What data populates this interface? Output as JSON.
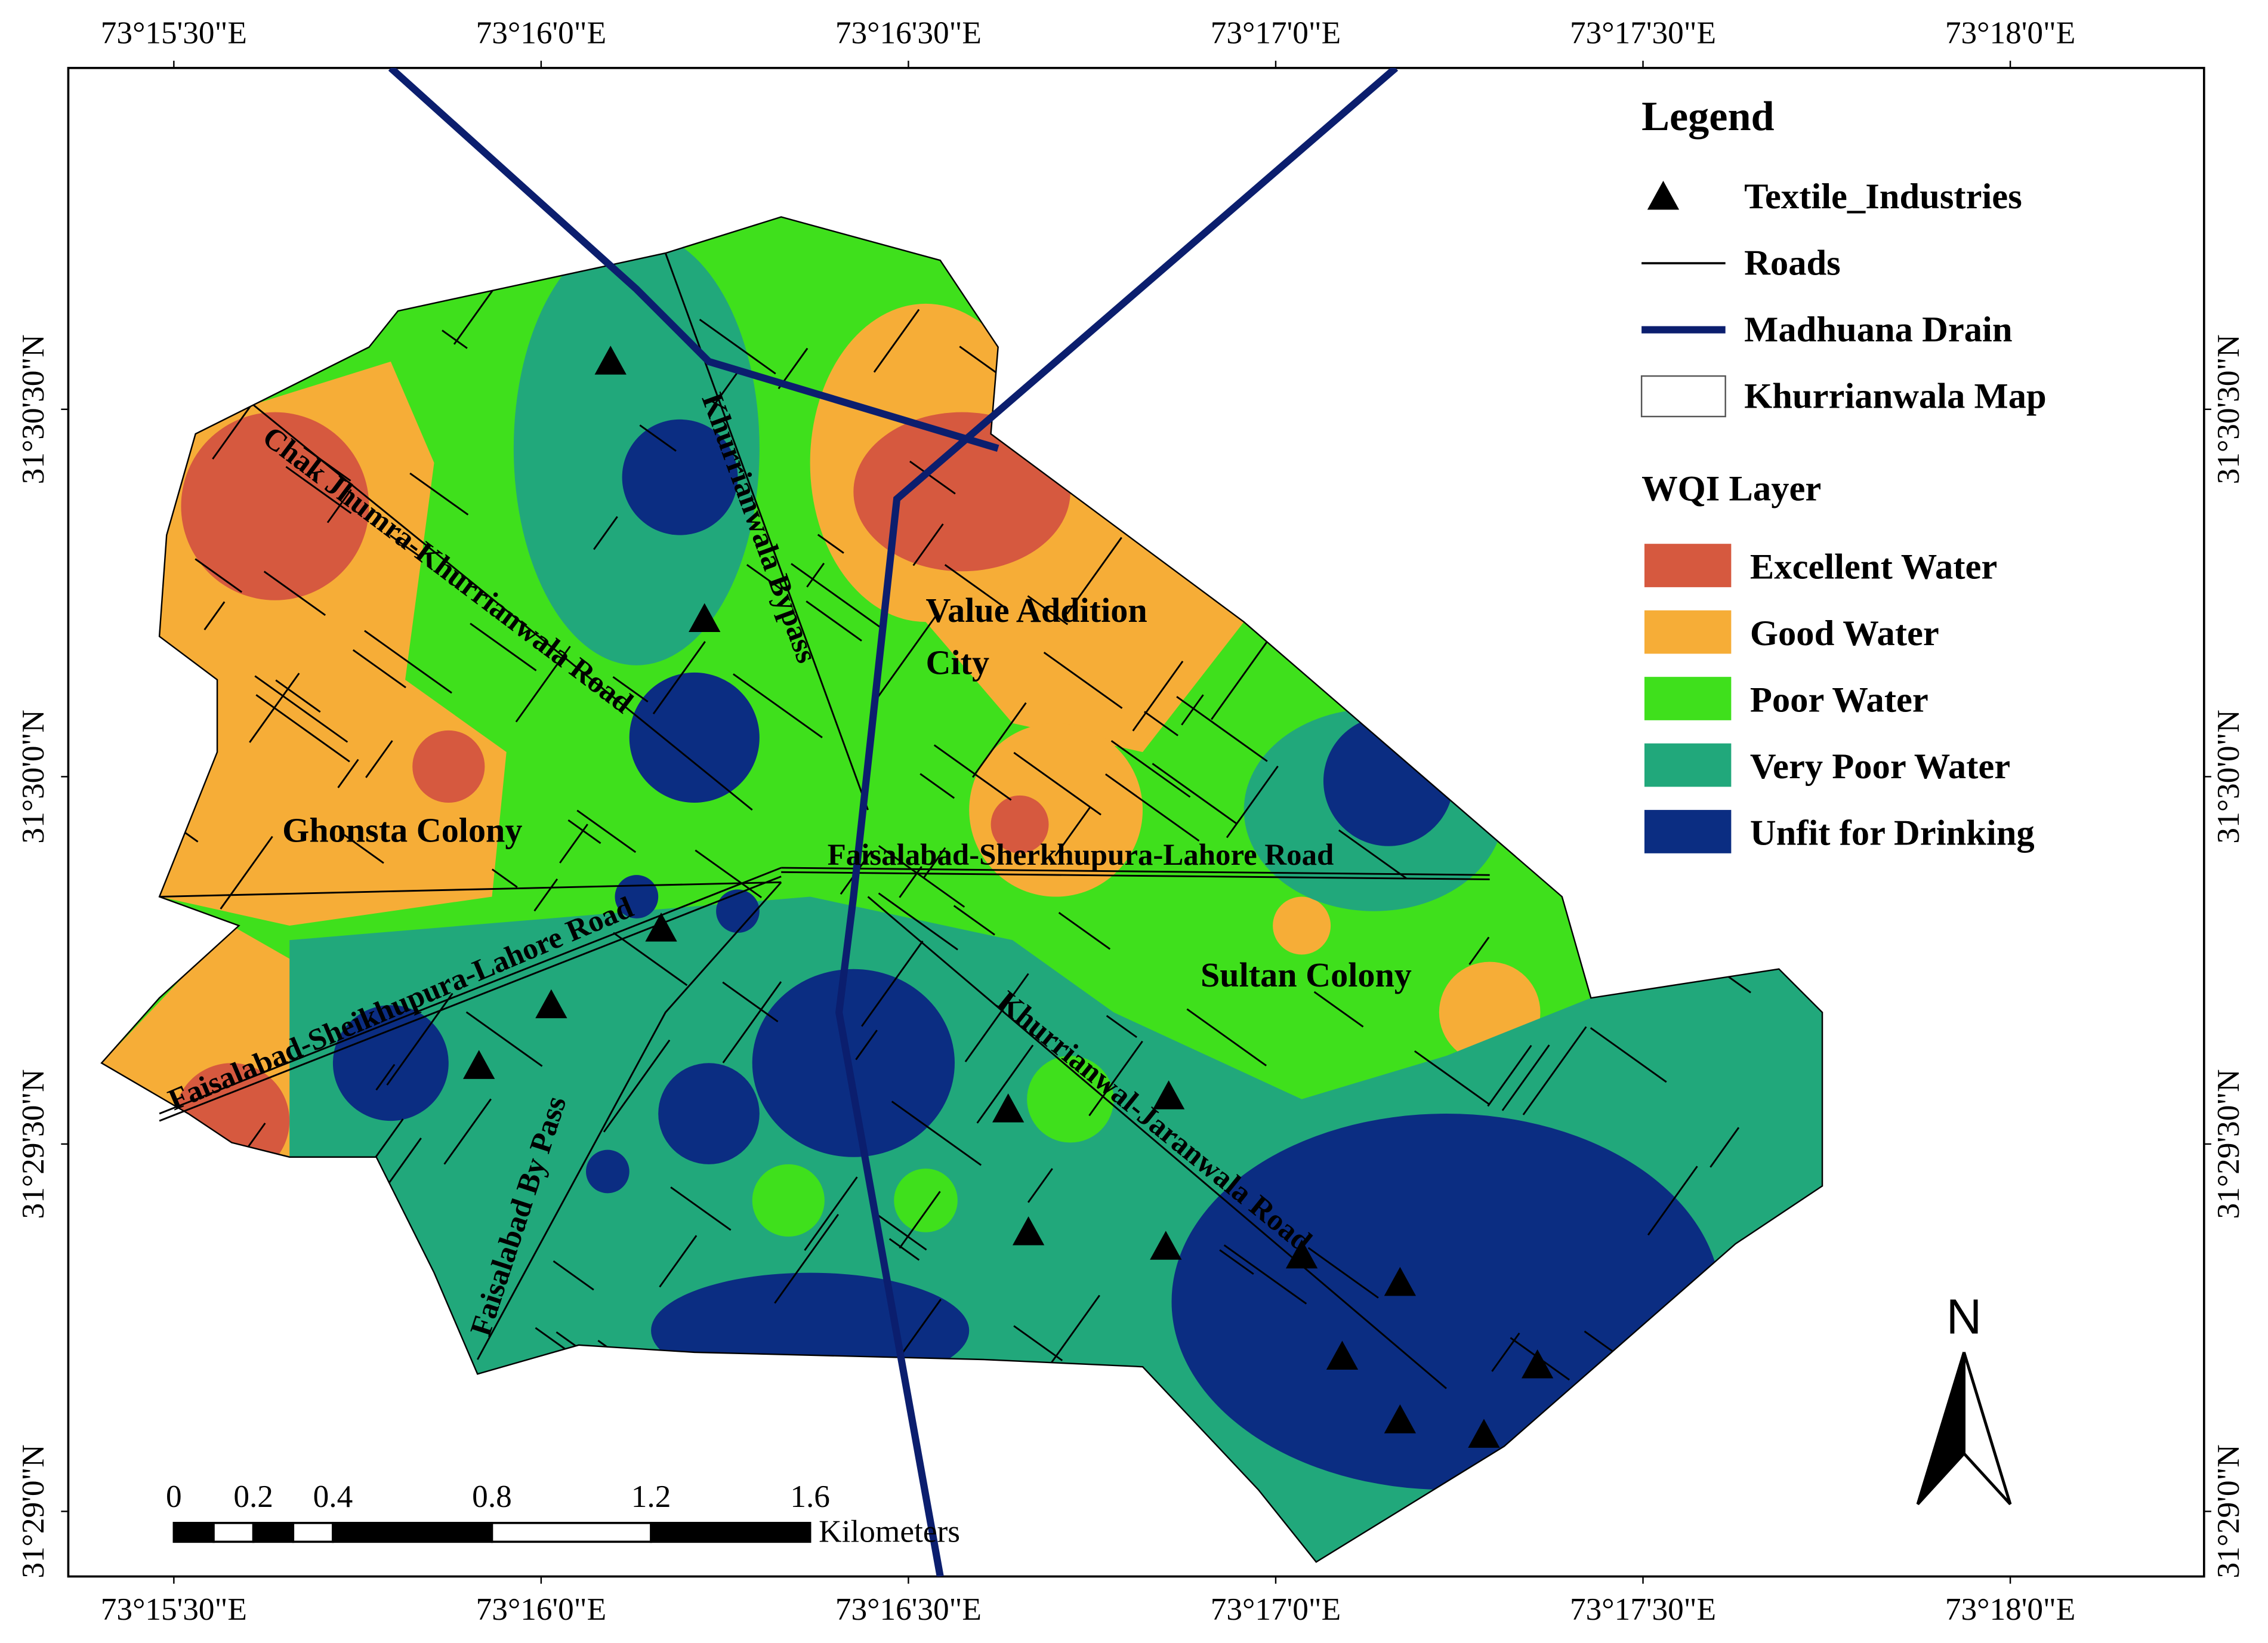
{
  "legend": {
    "title": "Legend",
    "items": [
      {
        "label": "Textile_Industries"
      },
      {
        "label": "Roads"
      },
      {
        "label": "Madhuana Drain"
      },
      {
        "label": "Khurrianwala Map"
      }
    ],
    "wqi_title": "WQI Layer",
    "wqi": [
      {
        "label": "Excellent Water",
        "color": "#d6593f"
      },
      {
        "label": "Good Water",
        "color": "#f6ad37"
      },
      {
        "label": "Poor Water",
        "color": "#3fe01c"
      },
      {
        "label": "Very Poor Water",
        "color": "#21a87b"
      },
      {
        "label": "Unfit for Drinking",
        "color": "#0b2d82"
      }
    ]
  },
  "axes": {
    "longitude": [
      "73°15'30\"E",
      "73°16'0\"E",
      "73°16'30\"E",
      "73°17'0\"E",
      "73°17'30\"E",
      "73°18'0\"E"
    ],
    "latitude": [
      "31°30'30\"N",
      "31°30'0\"N",
      "31°29'30\"N",
      "31°29'0\"N"
    ]
  },
  "places": [
    "Value Addition",
    "City",
    "Ghonsta Colony",
    "Sultan Colony"
  ],
  "roads": [
    "Chak Jhumra-Khurrianwala Road",
    "Khurrianwala Bypass",
    "Faisalabad-Sherkhupura-Lahore Road",
    "Faisalabad-Sheikhupura-Lahore Road",
    "Khurrianwal-Jaranwala Road",
    "Faisalabad By Pass"
  ],
  "scale": {
    "ticks": [
      0,
      0.2,
      0.4,
      0.8,
      1.2,
      1.6
    ],
    "unit": "Kilometers"
  },
  "north": "N"
}
